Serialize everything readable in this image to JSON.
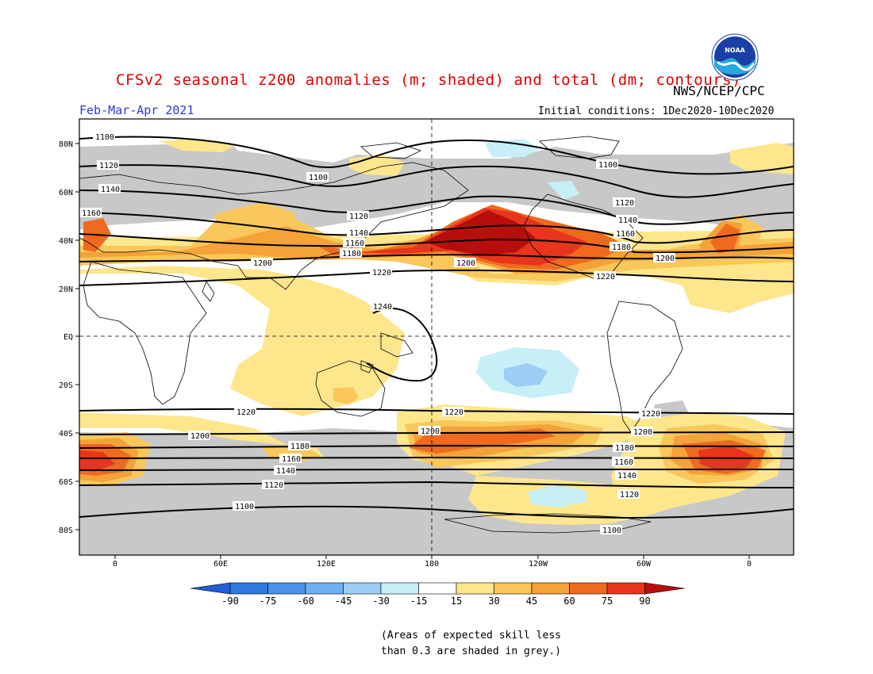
{
  "header": {
    "title": "CFSv2 seasonal z200 anomalies (m; shaded) and total (dm; contours)",
    "season": "Feb-Mar-Apr 2021",
    "agency": "NWS/NCEP/CPC",
    "initial_conditions": "Initial conditions: 1Dec2020-10Dec2020",
    "logo_text": "NOAA"
  },
  "map": {
    "lat_labels": [
      "80N",
      "60N",
      "40N",
      "20N",
      "EQ",
      "20S",
      "40S",
      "60S",
      "80S"
    ],
    "lon_labels": [
      "0",
      "60E",
      "120E",
      "180",
      "120W",
      "60W",
      "0"
    ],
    "contour_labels": [
      "1100",
      "1120",
      "1140",
      "1160",
      "1180",
      "1200",
      "1220",
      "1240"
    ]
  },
  "colorbar": {
    "ticks": [
      "-90",
      "-75",
      "-60",
      "-45",
      "-30",
      "-15",
      "15",
      "30",
      "45",
      "60",
      "75",
      "90"
    ],
    "colors": [
      "#1f5fd8",
      "#2f78e0",
      "#4a92ea",
      "#6fb0f0",
      "#9dcdf5",
      "#c6eff7",
      "#ffffff",
      "#fde68c",
      "#f9c75a",
      "#f5a238",
      "#ef6a1f",
      "#e8351b",
      "#b80d0d"
    ]
  },
  "footnote": {
    "line1": "(Areas of expected skill less",
    "line2": "than 0.3 are shaded in grey.)"
  }
}
